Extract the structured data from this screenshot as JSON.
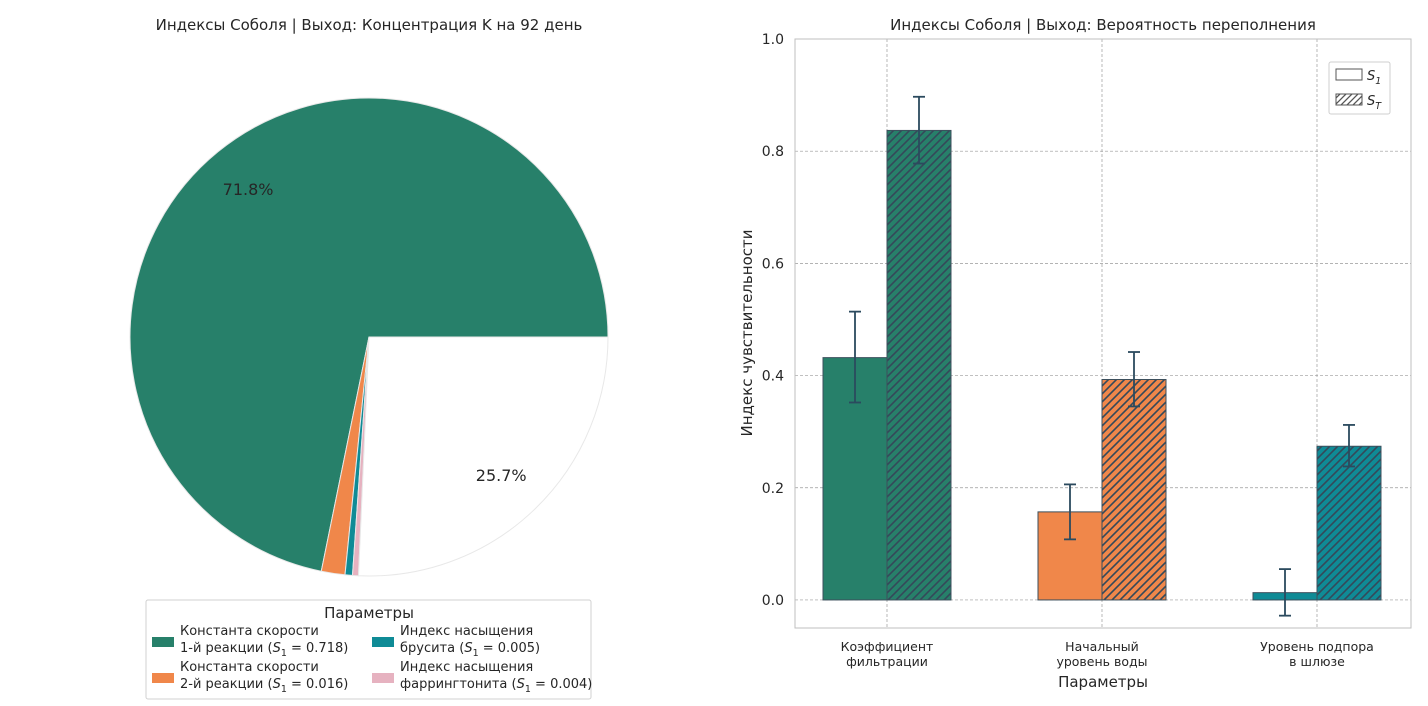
{
  "figure": {
    "pie_title": "Индексы Соболя | Выход: Концентрация K на 92 день",
    "bar_title": "Индексы Соболя | Выход: Вероятность переполнения"
  },
  "chart_data": [
    {
      "type": "pie",
      "title": "Индексы Соболя | Выход: Концентрация K на 92 день",
      "slices": [
        {
          "label": "Константа скорости 1-й реакции",
          "value": 0.718,
          "color": "#27806a",
          "pct_label": "71.8%"
        },
        {
          "label": "Константа скорости 2-й реакции",
          "value": 0.016,
          "color": "#f0874a",
          "pct_label": ""
        },
        {
          "label": "Индекс насыщения брусита",
          "value": 0.005,
          "color": "#0f8b96",
          "pct_label": ""
        },
        {
          "label": "Индекс насыщения фаррингтонита",
          "value": 0.004,
          "color": "#e6b2c0",
          "pct_label": ""
        },
        {
          "label": "",
          "value": 0.257,
          "color": "#ffffff",
          "pct_label": "25.7%"
        }
      ],
      "legend": {
        "title": "Параметры",
        "placement": "bottom",
        "entries": [
          {
            "line1": "Константа скорости",
            "line2_text": "1-й реакции (",
            "sym": "S",
            "sub": "1",
            "rest": " = 0.718)",
            "color": "#27806a"
          },
          {
            "line1": "Константа скорости",
            "line2_text": "2-й реакции (",
            "sym": "S",
            "sub": "1",
            "rest": " = 0.016)",
            "color": "#f0874a"
          },
          {
            "line1": "Индекс насыщения",
            "line2_text": "брусита (",
            "sym": "S",
            "sub": "1",
            "rest": " = 0.005)",
            "color": "#0f8b96"
          },
          {
            "line1": "Индекс насыщения",
            "line2_text": "фаррингтонита (",
            "sym": "S",
            "sub": "1",
            "rest": " = 0.004)",
            "color": "#e6b2c0"
          }
        ]
      }
    },
    {
      "type": "bar",
      "title": "Индексы Соболя | Выход: Вероятность переполнения",
      "xlabel": "Параметры",
      "ylabel": "Индекс чувствительности",
      "ylim": [
        -0.05,
        1.0
      ],
      "yticks": [
        0.0,
        0.2,
        0.4,
        0.6,
        0.8,
        1.0
      ],
      "grid": true,
      "categories": [
        [
          "Коэффициент",
          "фильтрации"
        ],
        [
          "Начальный",
          "уровень воды"
        ],
        [
          "Уровень подпора",
          "в шлюзе"
        ]
      ],
      "colors": [
        "#27806a",
        "#f0874a",
        "#0f8b96"
      ],
      "series": [
        {
          "name": "S1",
          "sym": "S",
          "sub": "1",
          "hatched": false,
          "values": [
            0.432,
            0.157,
            0.013
          ],
          "err_low": [
            0.352,
            0.108,
            -0.028
          ],
          "err_high": [
            0.514,
            0.206,
            0.055
          ]
        },
        {
          "name": "ST",
          "sym": "S",
          "sub": "T",
          "hatched": true,
          "values": [
            0.837,
            0.393,
            0.274
          ],
          "err_low": [
            0.778,
            0.345,
            0.238
          ],
          "err_high": [
            0.897,
            0.442,
            0.312
          ]
        }
      ],
      "legend_placement": "top-right"
    }
  ]
}
